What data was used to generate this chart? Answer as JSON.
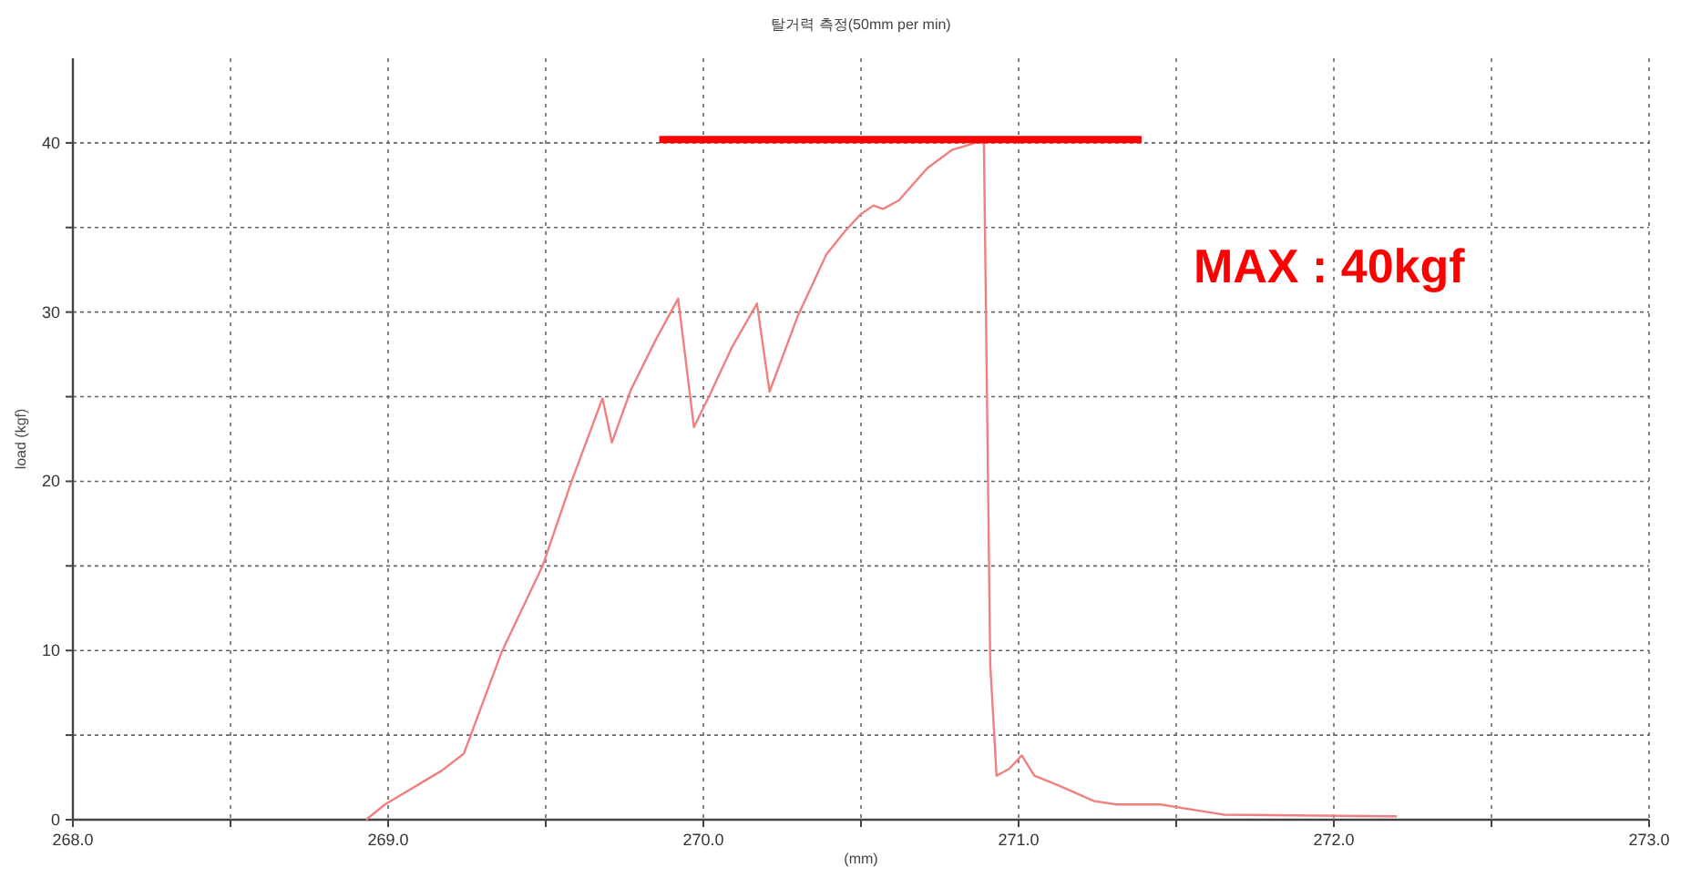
{
  "chart_data": {
    "type": "line",
    "title": "탈거력 측정(50mm per min)",
    "xlabel": "(mm)",
    "ylabel": "load (kgf)",
    "xlim": [
      268.0,
      273.0
    ],
    "ylim": [
      0,
      45
    ],
    "xticks": [
      {
        "value": 268.0,
        "label": "268.0"
      },
      {
        "value": 268.5,
        "label": null
      },
      {
        "value": 269.0,
        "label": "269.0"
      },
      {
        "value": 269.5,
        "label": null
      },
      {
        "value": 270.0,
        "label": "270.0"
      },
      {
        "value": 270.5,
        "label": null
      },
      {
        "value": 271.0,
        "label": "271.0"
      },
      {
        "value": 271.5,
        "label": null
      },
      {
        "value": 272.0,
        "label": "272.0"
      },
      {
        "value": 272.5,
        "label": null
      },
      {
        "value": 273.0,
        "label": "273.0"
      }
    ],
    "yticks": [
      0,
      {
        "value": 5,
        "label": null
      },
      10,
      {
        "value": 15,
        "label": null
      },
      20,
      {
        "value": 25,
        "label": null
      },
      30,
      {
        "value": 35,
        "label": null
      },
      40
    ],
    "grid": true,
    "line_style": "solid",
    "series": [
      {
        "color": "#f08080",
        "x": [
          268.93,
          268.99,
          269.17,
          269.24,
          269.36,
          269.49,
          269.58,
          269.68,
          269.71,
          269.77,
          269.85,
          269.92,
          269.97,
          270.02,
          270.09,
          270.17,
          270.21,
          270.3,
          270.39,
          270.45,
          270.5,
          270.54,
          270.57,
          270.62,
          270.71,
          270.79,
          270.88,
          270.89,
          270.91,
          270.93,
          270.97,
          271.01,
          271.05,
          271.13,
          271.24,
          271.31,
          271.45,
          271.55,
          271.65,
          272.2
        ],
        "values": [
          0,
          0.9,
          2.9,
          3.9,
          9.9,
          15.0,
          19.9,
          24.9,
          22.3,
          25.4,
          28.4,
          30.8,
          23.2,
          25.1,
          27.9,
          30.5,
          25.3,
          29.8,
          33.4,
          34.8,
          35.8,
          36.3,
          36.1,
          36.6,
          38.5,
          39.6,
          40.1,
          39.9,
          9.2,
          2.6,
          3.0,
          3.8,
          2.6,
          2.0,
          1.1,
          0.9,
          0.9,
          0.6,
          0.3,
          0.2
        ]
      },
      {
        "color": "#ff0000",
        "x": [
          269.86,
          271.39
        ],
        "values": [
          40.2,
          40.2
        ]
      }
    ],
    "annotations": [
      "MAX : 40kgf"
    ]
  }
}
